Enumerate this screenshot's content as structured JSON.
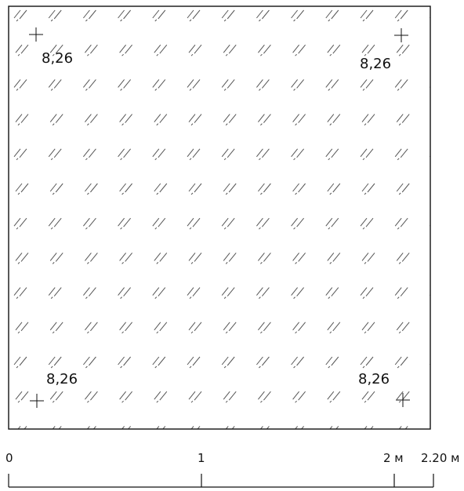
{
  "plan": {
    "elevations": {
      "top_left": "8,26",
      "top_right": "8,26",
      "bottom_left": "8,26",
      "bottom_right": "8,26"
    }
  },
  "scale_bar": {
    "labels": {
      "zero": "0",
      "one": "1",
      "two": "2 м",
      "end": "2.20 м"
    }
  }
}
